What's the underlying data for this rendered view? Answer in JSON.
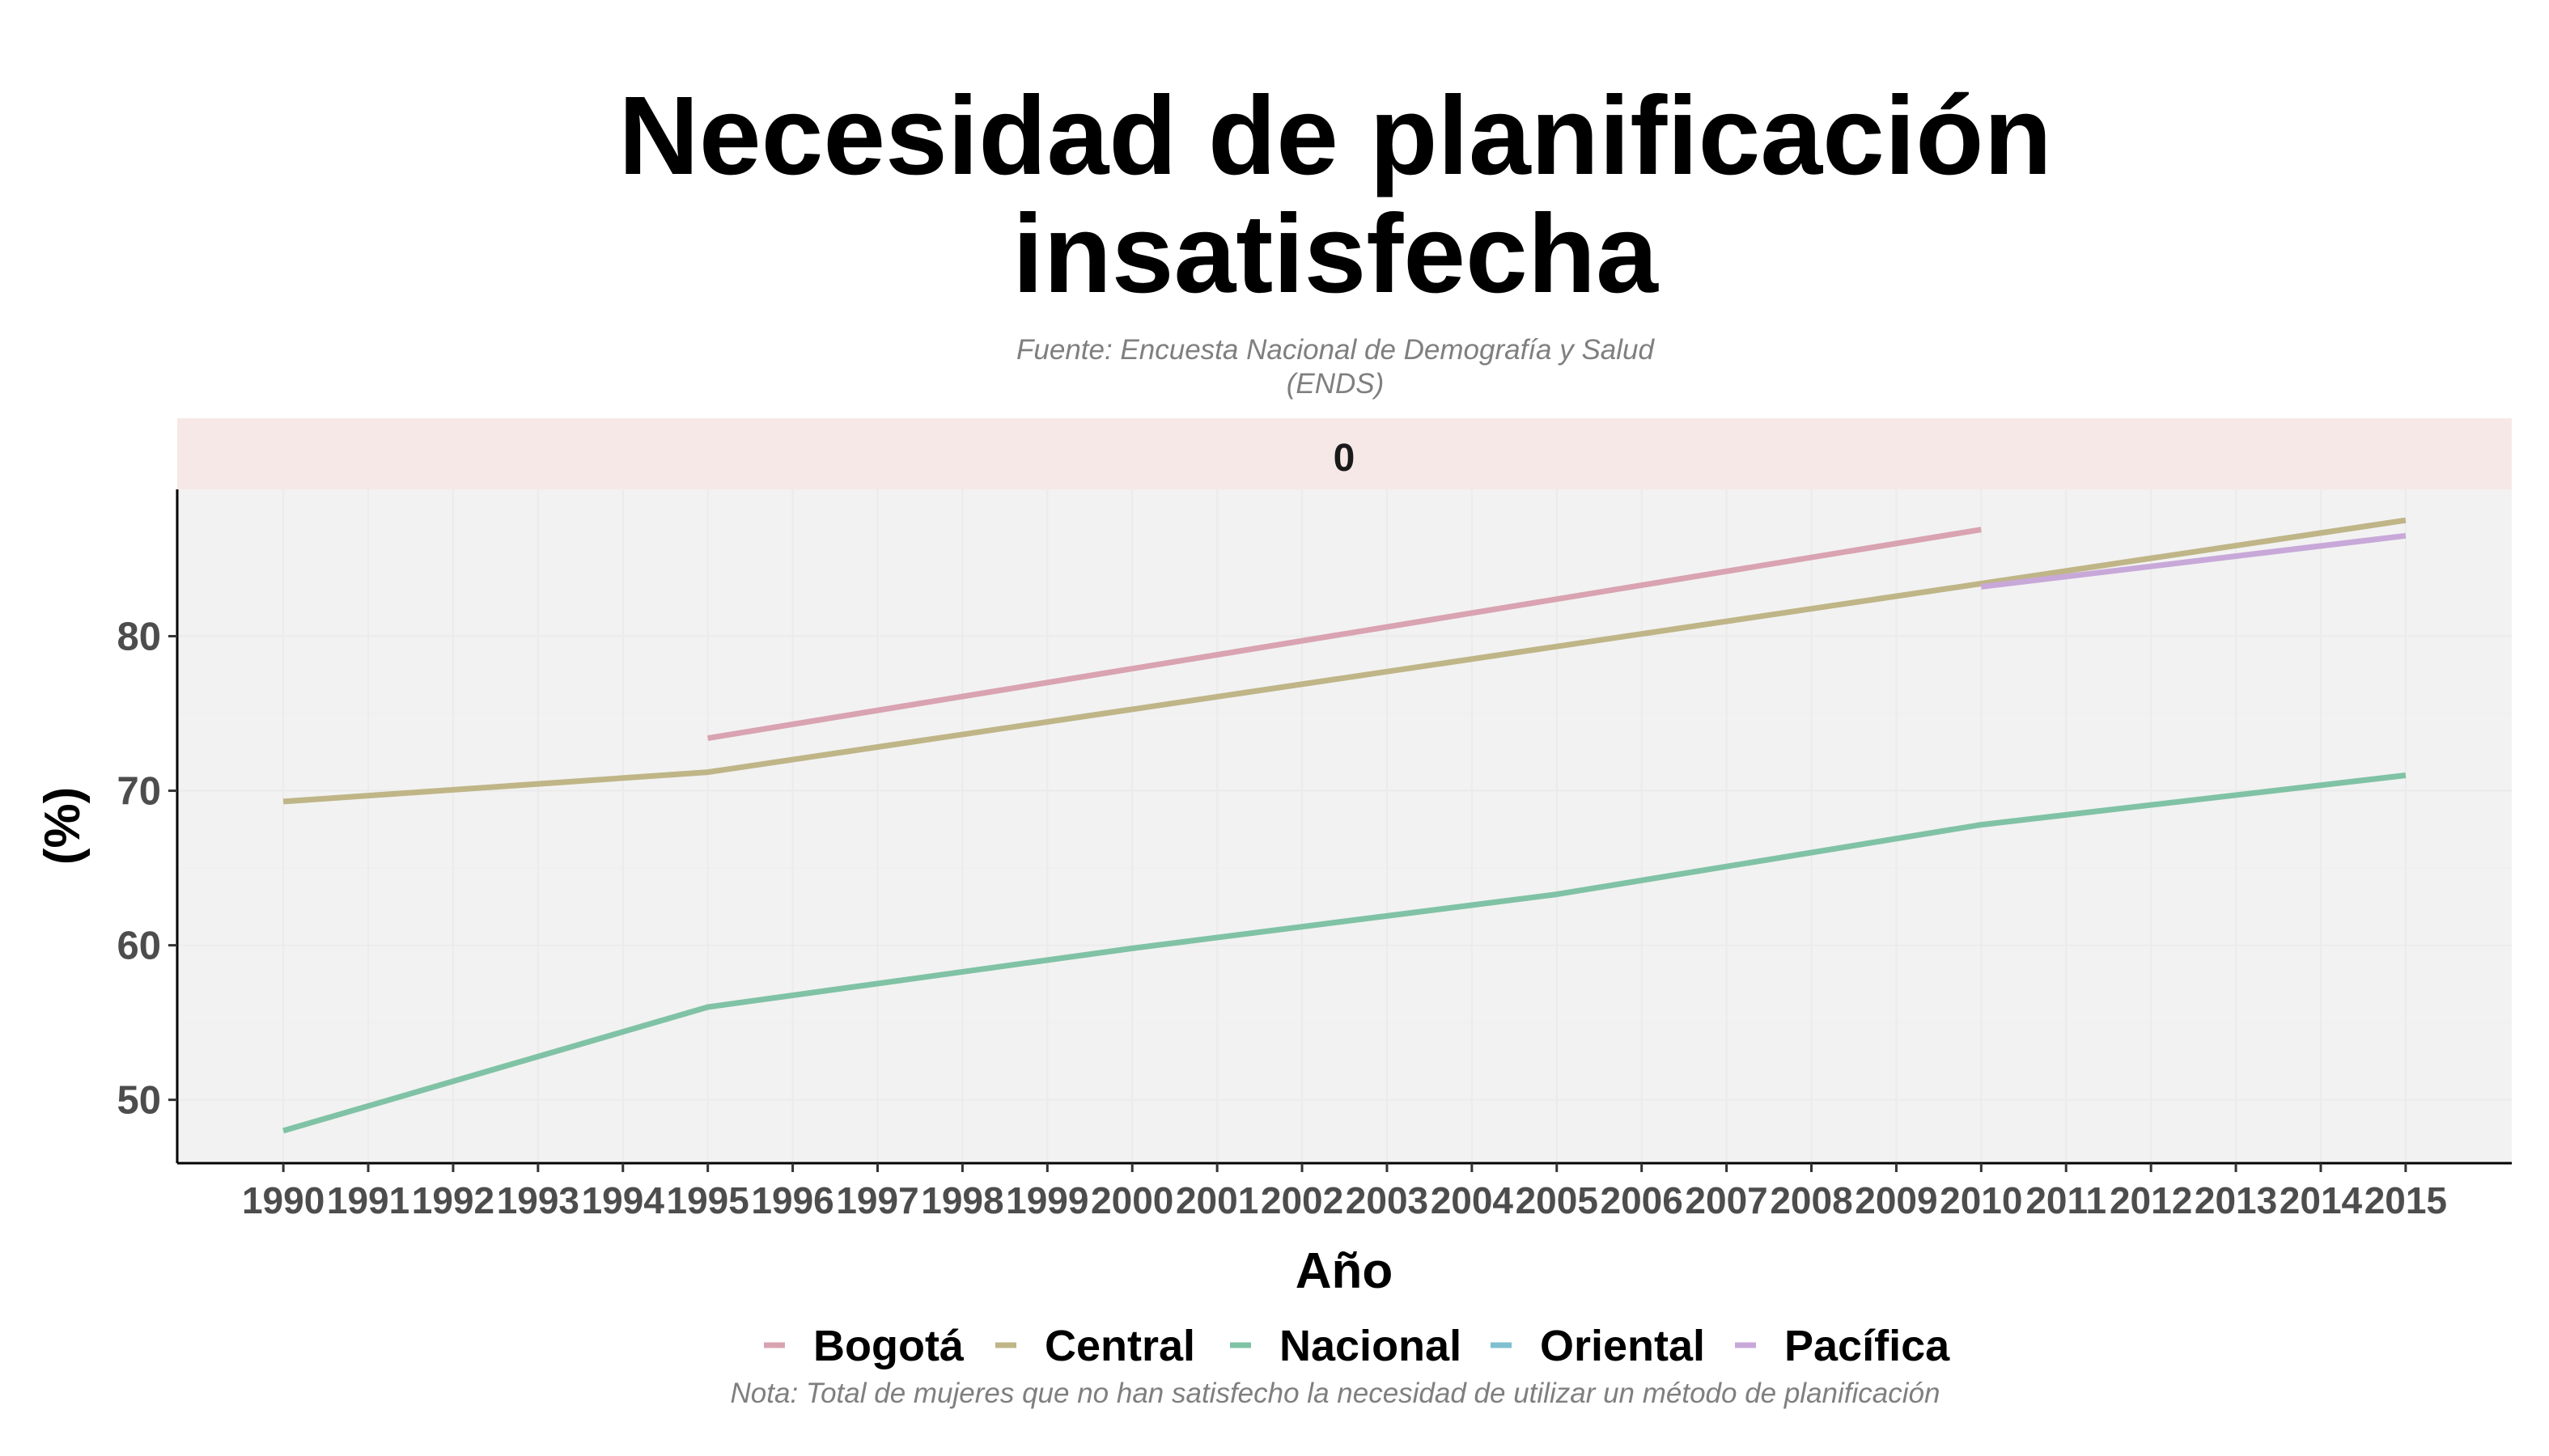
{
  "chart_data": {
    "type": "line",
    "title": "Necesidad de planificación insatisfecha",
    "title_lines": [
      "Necesidad de planificación",
      "insatisfecha"
    ],
    "subtitle_lines": [
      "Fuente: Encuesta Nacional de Demografía y Salud",
      "(ENDS)"
    ],
    "caption": "Nota: Total de mujeres que no han satisfecho la necesidad de utilizar un método de planificación",
    "facet_label": "0",
    "xlabel": "Año",
    "ylabel": "(%)",
    "x_ticks": [
      "1990",
      "1991",
      "1992",
      "1993",
      "1994",
      "1995",
      "1996",
      "1997",
      "1998",
      "1999",
      "2000",
      "2001",
      "2002",
      "2003",
      "2004",
      "2005",
      "2006",
      "2007",
      "2008",
      "2009",
      "2010",
      "2011",
      "2012",
      "2013",
      "2014",
      "2015"
    ],
    "y_ticks": [
      50,
      60,
      70,
      80
    ],
    "xlim": [
      1988.75,
      2016.25
    ],
    "ylim": [
      45.9,
      89.5
    ],
    "grid": true,
    "legend_position": "bottom",
    "panel_background": "#f2f2f2",
    "strip_background": "#f7e8e8",
    "series": [
      {
        "name": "Bogotá",
        "color": "#d9a3b1",
        "points": [
          [
            1995,
            73.4
          ],
          [
            2010,
            86.9
          ]
        ]
      },
      {
        "name": "Central",
        "color": "#bfb587",
        "points": [
          [
            1990,
            69.3
          ],
          [
            1995,
            71.2
          ],
          [
            2010,
            83.4
          ],
          [
            2015,
            87.5
          ]
        ]
      },
      {
        "name": "Nacional",
        "color": "#80c2a5",
        "points": [
          [
            1990,
            48.0
          ],
          [
            1995,
            56.0
          ],
          [
            2000,
            59.8
          ],
          [
            2005,
            63.3
          ],
          [
            2010,
            67.8
          ],
          [
            2015,
            71.0
          ]
        ]
      },
      {
        "name": "Oriental",
        "color": "#7fbfcf",
        "points": []
      },
      {
        "name": "Pacífica",
        "color": "#c8a8d9",
        "points": [
          [
            2010,
            83.2
          ],
          [
            2015,
            86.5
          ]
        ]
      }
    ]
  }
}
